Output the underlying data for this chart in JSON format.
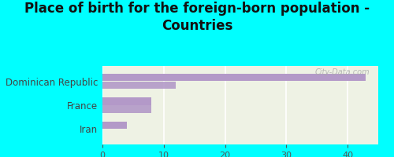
{
  "title": "Place of birth for the foreign-born population -\nCountries",
  "categories": [
    "Dominican Republic",
    "France",
    "Iran"
  ],
  "bar1_values": [
    43,
    8,
    4
  ],
  "bar2_values": [
    12,
    8,
    0
  ],
  "bar_color": "#b399c8",
  "bar_height": 0.3,
  "xlim": [
    0,
    45
  ],
  "xticks": [
    0,
    10,
    20,
    30,
    40
  ],
  "background_color": "#00ffff",
  "plot_bg_color": "#eef2e4",
  "grid_color": "#ffffff",
  "title_fontsize": 12,
  "tick_fontsize": 8,
  "label_fontsize": 8.5,
  "watermark": "City-Data.com"
}
